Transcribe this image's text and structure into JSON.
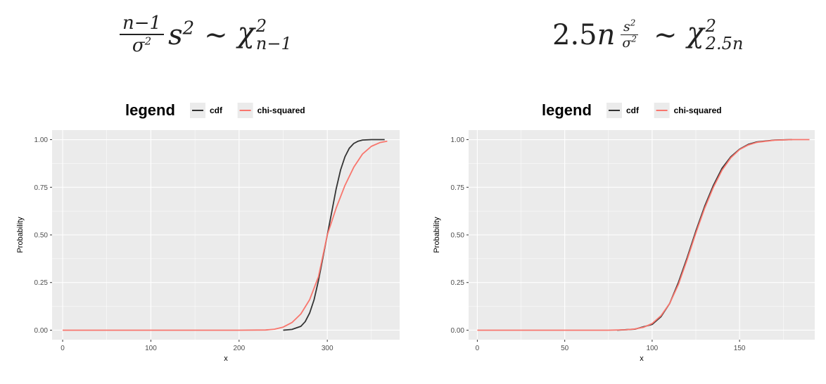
{
  "formulas": [
    {
      "left_num": "n−1",
      "left_den": "σ",
      "left_den_sup": "2",
      "var": "s",
      "var_sup": "2",
      "relation": "∼",
      "chi": "χ",
      "chi_sup": "2",
      "chi_sub": "n−1"
    },
    {
      "coef": "2.5n",
      "frac_num": "s",
      "frac_num_sup": "2",
      "frac_den": "σ",
      "frac_den_sup": "2",
      "relation": "∼",
      "chi": "χ",
      "chi_sup": "2",
      "chi_sub": "2.5n"
    }
  ],
  "colors": {
    "panel_bg": "#ebebeb",
    "grid": "#ffffff",
    "cdf": "#333333",
    "chi_squared": "#f8766d",
    "axis_text": "#4d4d4d"
  },
  "chart_data": [
    {
      "type": "line",
      "legend_title": "legend",
      "legend_position": "top",
      "xlabel": "x",
      "ylabel": "Probability",
      "xlim": [
        -12,
        382
      ],
      "ylim": [
        -0.05,
        1.05
      ],
      "x_ticks": [
        0,
        100,
        200,
        300
      ],
      "y_ticks": [
        0.0,
        0.25,
        0.5,
        0.75,
        1.0
      ],
      "x_tick_labels": [
        "0",
        "100",
        "200",
        "300"
      ],
      "y_tick_labels": [
        "0.00",
        "0.25",
        "0.50",
        "0.75",
        "1.00"
      ],
      "grid": true,
      "series": [
        {
          "name": "cdf",
          "color": "#333333",
          "points": [
            [
              250,
              0.0
            ],
            [
              260,
              0.004
            ],
            [
              270,
              0.02
            ],
            [
              275,
              0.045
            ],
            [
              280,
              0.09
            ],
            [
              285,
              0.16
            ],
            [
              290,
              0.26
            ],
            [
              295,
              0.38
            ],
            [
              300,
              0.5
            ],
            [
              305,
              0.62
            ],
            [
              310,
              0.74
            ],
            [
              315,
              0.84
            ],
            [
              320,
              0.91
            ],
            [
              325,
              0.955
            ],
            [
              330,
              0.98
            ],
            [
              335,
              0.992
            ],
            [
              340,
              0.998
            ],
            [
              350,
              1.0
            ],
            [
              365,
              1.0
            ]
          ]
        },
        {
          "name": "chi-squared",
          "color": "#f8766d",
          "points": [
            [
              0,
              0.0
            ],
            [
              100,
              0.0
            ],
            [
              200,
              0.0
            ],
            [
              230,
              0.001
            ],
            [
              240,
              0.005
            ],
            [
              250,
              0.016
            ],
            [
              260,
              0.04
            ],
            [
              270,
              0.085
            ],
            [
              280,
              0.16
            ],
            [
              290,
              0.28
            ],
            [
              300,
              0.5
            ],
            [
              310,
              0.64
            ],
            [
              320,
              0.76
            ],
            [
              330,
              0.855
            ],
            [
              340,
              0.925
            ],
            [
              350,
              0.965
            ],
            [
              360,
              0.985
            ],
            [
              368,
              0.992
            ]
          ]
        }
      ]
    },
    {
      "type": "line",
      "legend_title": "legend",
      "legend_position": "top",
      "xlabel": "x",
      "ylabel": "Probability",
      "xlim": [
        -5,
        193
      ],
      "ylim": [
        -0.05,
        1.05
      ],
      "x_ticks": [
        0,
        50,
        100,
        150
      ],
      "y_ticks": [
        0.0,
        0.25,
        0.5,
        0.75,
        1.0
      ],
      "x_tick_labels": [
        "0",
        "50",
        "100",
        "150"
      ],
      "y_tick_labels": [
        "0.00",
        "0.25",
        "0.50",
        "0.75",
        "1.00"
      ],
      "grid": true,
      "series": [
        {
          "name": "cdf",
          "color": "#333333",
          "points": [
            [
              80,
              0.0
            ],
            [
              90,
              0.005
            ],
            [
              100,
              0.03
            ],
            [
              105,
              0.07
            ],
            [
              110,
              0.14
            ],
            [
              115,
              0.25
            ],
            [
              120,
              0.38
            ],
            [
              125,
              0.52
            ],
            [
              130,
              0.65
            ],
            [
              135,
              0.76
            ],
            [
              140,
              0.85
            ],
            [
              145,
              0.91
            ],
            [
              150,
              0.95
            ],
            [
              155,
              0.975
            ],
            [
              160,
              0.988
            ],
            [
              170,
              0.998
            ],
            [
              180,
              1.0
            ]
          ]
        },
        {
          "name": "chi-squared",
          "color": "#f8766d",
          "points": [
            [
              0,
              0.0
            ],
            [
              50,
              0.0
            ],
            [
              75,
              0.0
            ],
            [
              85,
              0.002
            ],
            [
              90,
              0.006
            ],
            [
              95,
              0.015
            ],
            [
              100,
              0.035
            ],
            [
              105,
              0.075
            ],
            [
              110,
              0.14
            ],
            [
              115,
              0.24
            ],
            [
              120,
              0.37
            ],
            [
              125,
              0.51
            ],
            [
              130,
              0.64
            ],
            [
              135,
              0.75
            ],
            [
              140,
              0.84
            ],
            [
              145,
              0.905
            ],
            [
              150,
              0.948
            ],
            [
              155,
              0.972
            ],
            [
              160,
              0.986
            ],
            [
              170,
              0.997
            ],
            [
              180,
              1.0
            ],
            [
              190,
              1.0
            ]
          ]
        }
      ]
    }
  ]
}
